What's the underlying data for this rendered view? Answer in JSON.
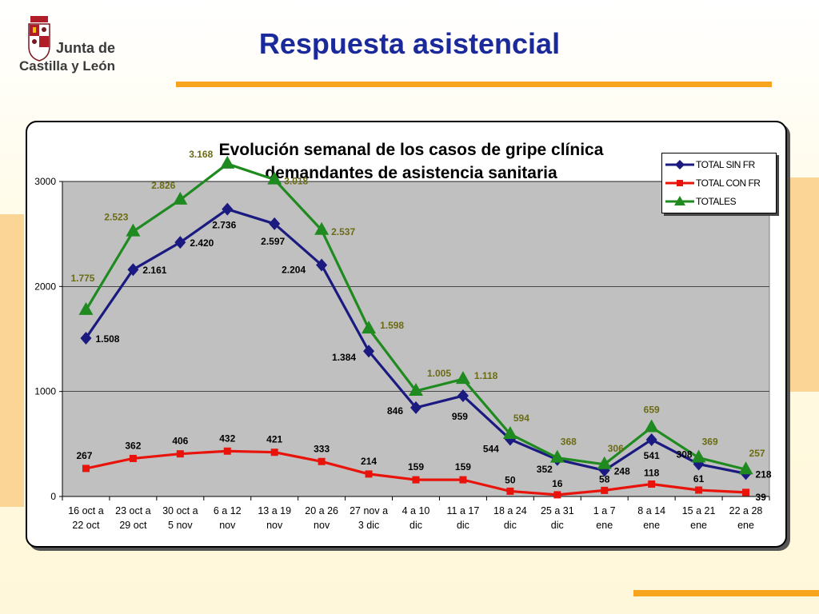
{
  "slide": {
    "title": "Respuesta asistencial",
    "logo_line1": "Junta de",
    "logo_line2": "Castilla y León"
  },
  "colors": {
    "sin_fr": "#1a1a80",
    "con_fr": "#e8140c",
    "totales": "#1f8a1f",
    "plot_bg": "#c0c0c0",
    "title_blue": "#1b2a9a",
    "accent_orange": "#f7a51e"
  },
  "chart_data": {
    "type": "line",
    "title": "Evolución semanal de los casos de gripe clínica demandantes de asistencia sanitaria",
    "title_lines": [
      "Evolución semanal de los casos de gripe clínica",
      "demandantes de asistencia sanitaria"
    ],
    "categories": [
      [
        "16 oct a",
        "22 oct"
      ],
      [
        "23 oct a",
        "29 oct"
      ],
      [
        "30 oct a",
        "5 nov"
      ],
      [
        "6 a 12",
        "nov"
      ],
      [
        "13 a 19",
        "nov"
      ],
      [
        "20 a 26",
        "nov"
      ],
      [
        "27 nov a",
        "3 dic"
      ],
      [
        "4 a 10",
        "dic"
      ],
      [
        "11 a 17",
        "dic"
      ],
      [
        "18 a 24",
        "dic"
      ],
      [
        "25 a 31",
        "dic"
      ],
      [
        "1 a 7",
        "ene"
      ],
      [
        "8 a 14",
        "ene"
      ],
      [
        "15 a 21",
        "ene"
      ],
      [
        "22 a 28",
        "ene"
      ]
    ],
    "ylim": [
      0,
      3000
    ],
    "yticks": [
      "0",
      "1000",
      "2000",
      "3000"
    ],
    "grid": true,
    "legend_position": "top-right",
    "series": [
      {
        "name": "TOTAL SIN FR",
        "values": [
          1508,
          2161,
          2420,
          2736,
          2597,
          2204,
          1384,
          846,
          959,
          544,
          352,
          248,
          541,
          308,
          218
        ],
        "labels": [
          "1.508",
          "2.161",
          "2.420",
          "2.736",
          "2.597",
          "2.204",
          "1.384",
          "846",
          "959",
          "544",
          "352",
          "248",
          "541",
          "308",
          "218"
        ]
      },
      {
        "name": "TOTAL CON FR",
        "values": [
          267,
          362,
          406,
          432,
          421,
          333,
          214,
          159,
          159,
          50,
          16,
          58,
          118,
          61,
          39
        ],
        "labels": [
          "267",
          "362",
          "406",
          "432",
          "421",
          "333",
          "214",
          "159",
          "159",
          "50",
          "16",
          "58",
          "118",
          "61",
          "39"
        ]
      },
      {
        "name": "TOTALES",
        "values": [
          1775,
          2523,
          2826,
          3168,
          3018,
          2537,
          1598,
          1005,
          1118,
          594,
          368,
          306,
          659,
          369,
          257
        ],
        "labels": [
          "1.775",
          "2.523",
          "2.826",
          "3.168",
          "3.018",
          "2.537",
          "1.598",
          "1.005",
          "1.118",
          "594",
          "368",
          "306",
          "659",
          "369",
          "257"
        ]
      }
    ]
  }
}
